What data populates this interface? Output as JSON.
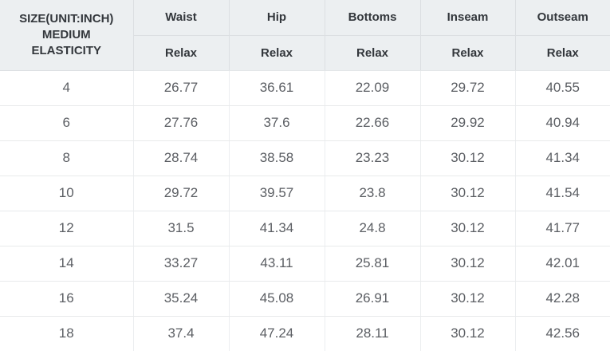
{
  "table": {
    "corner_header": {
      "line1": "SIZE(UNIT:INCH)",
      "line2": "MEDIUM",
      "line3": "ELASTICITY"
    },
    "columns": [
      {
        "label": "Waist",
        "sub": "Relax"
      },
      {
        "label": "Hip",
        "sub": "Relax"
      },
      {
        "label": "Bottoms",
        "sub": "Relax"
      },
      {
        "label": "Inseam",
        "sub": "Relax"
      },
      {
        "label": "Outseam",
        "sub": "Relax"
      }
    ],
    "rows": [
      [
        "4",
        "26.77",
        "36.61",
        "22.09",
        "29.72",
        "40.55"
      ],
      [
        "6",
        "27.76",
        "37.6",
        "22.66",
        "29.92",
        "40.94"
      ],
      [
        "8",
        "28.74",
        "38.58",
        "23.23",
        "30.12",
        "41.34"
      ],
      [
        "10",
        "29.72",
        "39.57",
        "23.8",
        "30.12",
        "41.54"
      ],
      [
        "12",
        "31.5",
        "41.34",
        "24.8",
        "30.12",
        "41.77"
      ],
      [
        "14",
        "33.27",
        "43.11",
        "25.81",
        "30.12",
        "42.01"
      ],
      [
        "16",
        "35.24",
        "45.08",
        "26.91",
        "30.12",
        "42.28"
      ],
      [
        "18",
        "37.4",
        "47.24",
        "28.11",
        "30.12",
        "42.56"
      ]
    ]
  },
  "colors": {
    "header_background": "#eceff1",
    "header_text": "#33373c",
    "data_text": "#5b5e63",
    "header_border": "#dcdfe2",
    "row_border": "#e8eaeb"
  }
}
